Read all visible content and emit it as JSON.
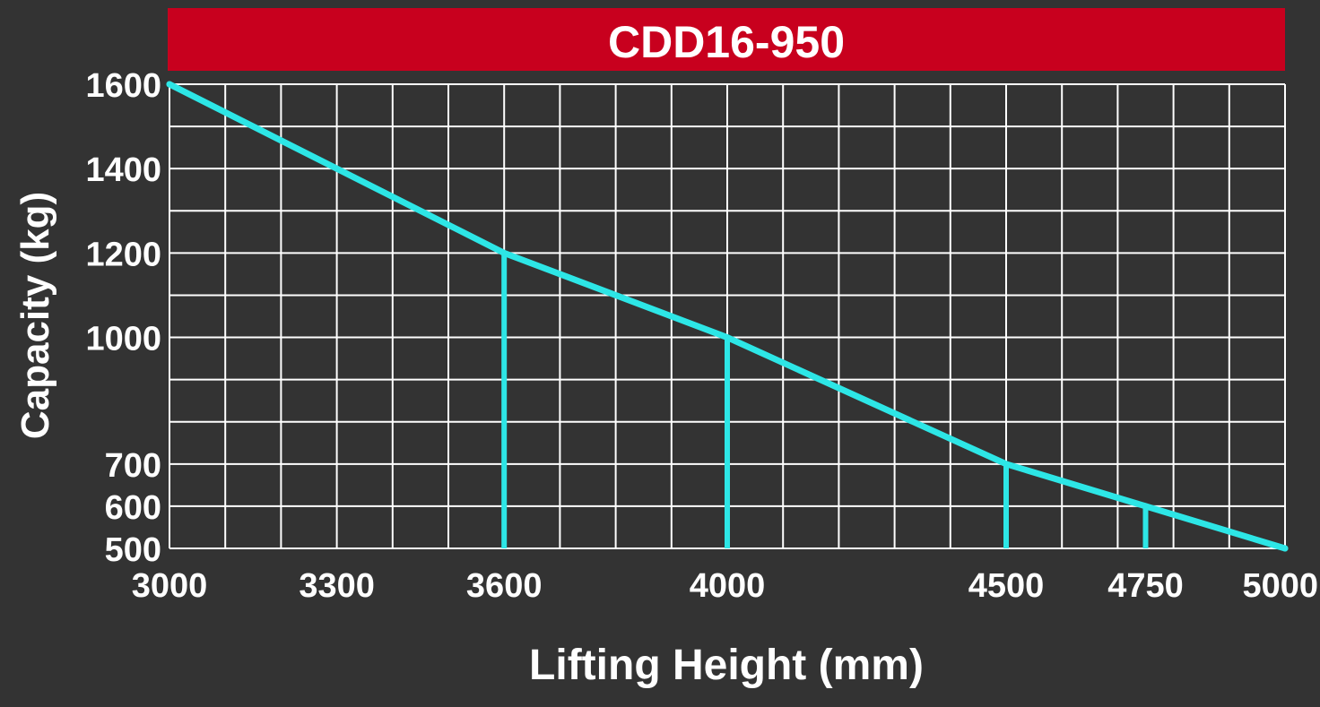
{
  "chart_data": {
    "type": "line",
    "title": "CDD16-950",
    "xlabel": "Lifting Height (mm)",
    "ylabel": "Capacity (kg)",
    "xlim": [
      3000,
      5000
    ],
    "ylim": [
      500,
      1600
    ],
    "x_ticks": [
      3000,
      3300,
      3600,
      4000,
      4500,
      4750,
      5000
    ],
    "y_ticks": [
      500,
      600,
      700,
      1000,
      1200,
      1400,
      1600
    ],
    "grid": true,
    "series": [
      {
        "x": [
          3000,
          3600,
          4000,
          4500,
          4750,
          5000
        ],
        "values": [
          1600,
          1200,
          1000,
          700,
          600,
          500
        ]
      }
    ],
    "drop_lines_x": [
      3600,
      4000,
      4500,
      4750
    ],
    "colors": {
      "background": "#333333",
      "title_band": "#c8001e",
      "grid": "#ffffff",
      "line": "#2de6e6",
      "text": "#ffffff"
    }
  }
}
